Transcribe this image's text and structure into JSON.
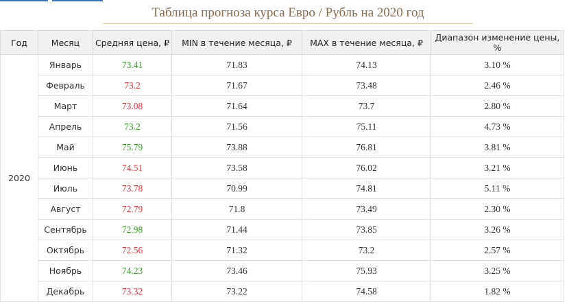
{
  "header": {
    "title": "Таблица прогноза курса Евро / Рубль на 2020 год"
  },
  "table": {
    "columns": [
      "Год",
      "Месяц",
      "Средняя цена, ₽",
      "MIN в течение месяца, ₽",
      "MAX в течение месяца, ₽",
      "Диапазон изменение цены, %"
    ],
    "year": "2020",
    "rows": [
      {
        "month": "Январь",
        "avg": "73.41",
        "avg_color": "#3a9a2a",
        "min": "71.83",
        "max": "74.13",
        "range": "3.10 %"
      },
      {
        "month": "Февраль",
        "avg": "73.2",
        "avg_color": "#e8323c",
        "min": "71.67",
        "max": "73.48",
        "range": "2.46 %"
      },
      {
        "month": "Март",
        "avg": "73.08",
        "avg_color": "#e8323c",
        "min": "71.64",
        "max": "73.7",
        "range": "2.80 %"
      },
      {
        "month": "Апрель",
        "avg": "73.2",
        "avg_color": "#3a9a2a",
        "min": "71.56",
        "max": "75.11",
        "range": "4.73 %"
      },
      {
        "month": "Май",
        "avg": "75.79",
        "avg_color": "#3a9a2a",
        "min": "73.88",
        "max": "76.81",
        "range": "3.81 %"
      },
      {
        "month": "Июнь",
        "avg": "74.51",
        "avg_color": "#e8323c",
        "min": "73.58",
        "max": "76.02",
        "range": "3.21 %"
      },
      {
        "month": "Июль",
        "avg": "73.78",
        "avg_color": "#e8323c",
        "min": "70.99",
        "max": "74.81",
        "range": "5.11 %"
      },
      {
        "month": "Август",
        "avg": "72.79",
        "avg_color": "#e8323c",
        "min": "71.8",
        "max": "73.49",
        "range": "2.30 %"
      },
      {
        "month": "Сентябрь",
        "avg": "72.98",
        "avg_color": "#3a9a2a",
        "min": "71.44",
        "max": "73.85",
        "range": "3.26 %"
      },
      {
        "month": "Октябрь",
        "avg": "72.56",
        "avg_color": "#e8323c",
        "min": "71.32",
        "max": "73.2",
        "range": "2.57 %"
      },
      {
        "month": "Ноябрь",
        "avg": "74.23",
        "avg_color": "#3a9a2a",
        "min": "73.46",
        "max": "75.93",
        "range": "3.25 %"
      },
      {
        "month": "Декабрь",
        "avg": "73.32",
        "avg_color": "#e8323c",
        "min": "73.22",
        "max": "74.58",
        "range": "1.82 %"
      }
    ]
  }
}
